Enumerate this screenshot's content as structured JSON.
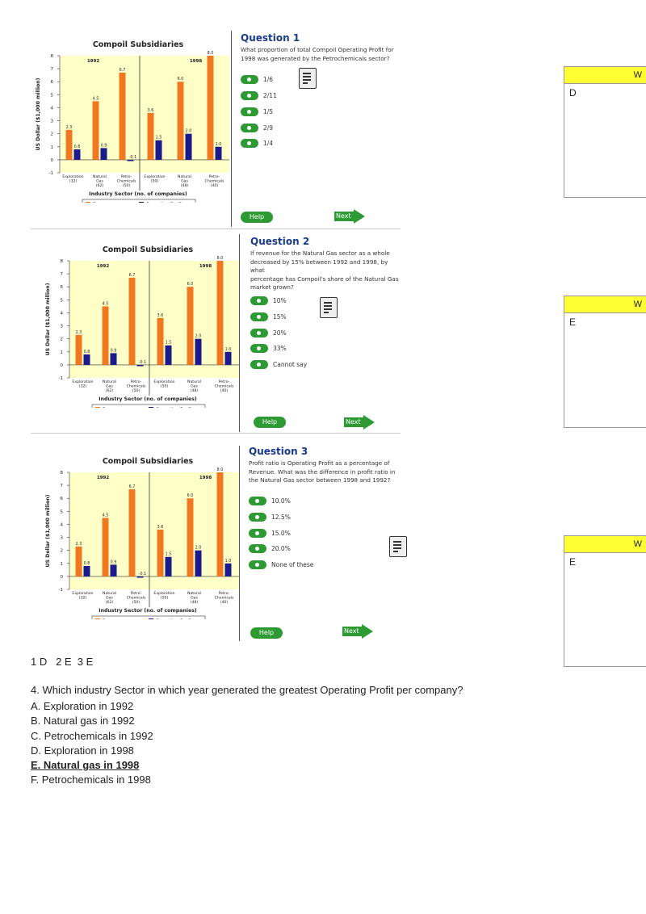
{
  "chart_data": {
    "type": "bar",
    "title": "Compoil Subsidiaries",
    "ylabel": "US Dollar ($1,000 million)",
    "xlabel": "Industry Sector (no. of companies)",
    "ylim": [
      -1,
      8
    ],
    "yticks": [
      "-1",
      "0",
      "1",
      "2",
      "3",
      "4",
      "5",
      "6",
      "7",
      "8"
    ],
    "years": [
      "1992",
      "1998"
    ],
    "groups": [
      {
        "year": "1992",
        "categories": [
          {
            "label": [
              "Exploration",
              "(32)"
            ],
            "revenue": 2.3,
            "profit": 0.8
          },
          {
            "label": [
              "Natural",
              "Gas",
              "(62)"
            ],
            "revenue": 4.5,
            "profit": 0.9
          },
          {
            "label": [
              "Petro-",
              "Chemicals",
              "(50)"
            ],
            "revenue": 6.7,
            "profit": -0.1
          }
        ]
      },
      {
        "year": "1998",
        "categories": [
          {
            "label": [
              "Exploration",
              "(50)"
            ],
            "revenue": 3.6,
            "profit": 1.5
          },
          {
            "label": [
              "Natural",
              "Gas",
              "(48)"
            ],
            "revenue": 6.0,
            "profit": 2.0
          },
          {
            "label": [
              "Petro-",
              "Chemicals",
              "(40)"
            ],
            "revenue": 8.0,
            "profit": 1.0
          }
        ]
      }
    ],
    "legend": [
      {
        "name": "Revenue",
        "color": "#f07820"
      },
      {
        "name": "Operating Profit",
        "color": "#1a1a8c"
      }
    ],
    "plot_bg": "#ffffc8"
  },
  "questions": [
    {
      "title": "Question 1",
      "text": [
        "What proportion of total Compoil Operating Profit for",
        "1998 was generated by the Petrochemicals sector?"
      ],
      "options": [
        "1/6",
        "2/11",
        "1/5",
        "2/9",
        "1/4"
      ]
    },
    {
      "title": "Question 2",
      "text": [
        "If revenue for the Natural Gas sector as a whole",
        "decreased by 15% between 1992 and 1998, by what",
        "percentage has Compoil's share of the Natural Gas",
        "market grown?"
      ],
      "options": [
        "10%",
        "15%",
        "20%",
        "33%",
        "Cannot say"
      ]
    },
    {
      "title": "Question 3",
      "text": [
        "Profit ratio is Operating Profit as a percentage of",
        "Revenue. What was the difference in profit ratio in",
        "the Natural Gas sector between 1998 and 1992?"
      ],
      "options": [
        "10.0%",
        "12.5%",
        "15.0%",
        "20.0%",
        "None of these"
      ]
    }
  ],
  "buttons": {
    "help": "Help",
    "next": "Next"
  },
  "side_boxes": [
    {
      "header": "W",
      "answer": "D"
    },
    {
      "header": "W",
      "answer": "E"
    },
    {
      "header": "W",
      "answer": "E"
    }
  ],
  "summary": "1 D   2 E  3 E",
  "question4": {
    "prompt": "4. Which industry Sector in which year generated the greatest Operating Profit per company?",
    "options": [
      "A. Exploration in 1992",
      "B. Natural gas in 1992",
      "C. Petrochemicals in 1992",
      "D. Exploration in 1998",
      "E. Natural gas in 1998",
      "F. Petrochemicals in 1998"
    ],
    "correct_index": 4
  },
  "colors": {
    "accent_green": "#2e9a33",
    "question_blue": "#1a3a8a",
    "side_header": "#ffff33"
  }
}
